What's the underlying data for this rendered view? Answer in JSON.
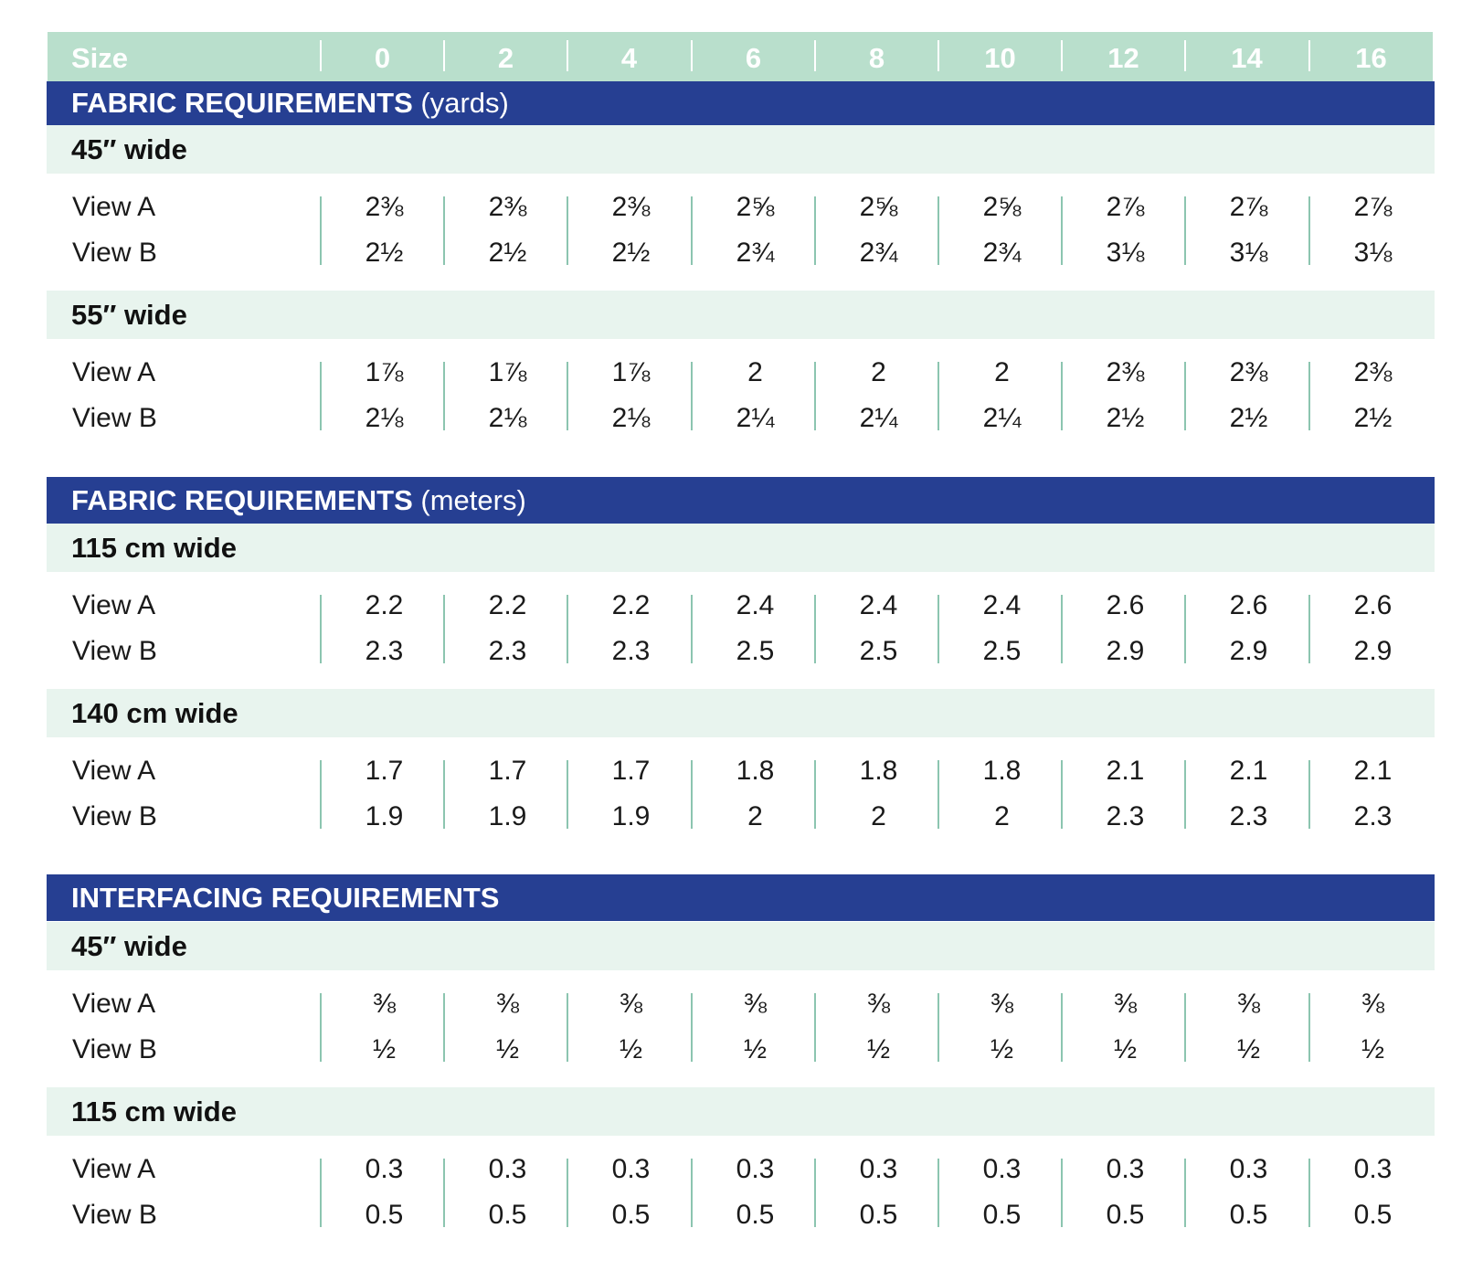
{
  "colors": {
    "header": "#b9dfcc",
    "navy": "#263f92",
    "band": "#e8f4ee",
    "divider": "#8cc5b0"
  },
  "size_header": {
    "label": "Size",
    "sizes": [
      "0",
      "2",
      "4",
      "6",
      "8",
      "10",
      "12",
      "14",
      "16"
    ]
  },
  "sections": [
    {
      "title": "FABRIC REQUIREMENTS",
      "unit": "(yards)",
      "groups": [
        {
          "label": "45″ wide",
          "rows": [
            {
              "label": "View A",
              "values": [
                "2⅜",
                "2⅜",
                "2⅜",
                "2⅝",
                "2⅝",
                "2⅝",
                "2⅞",
                "2⅞",
                "2⅞"
              ]
            },
            {
              "label": "View B",
              "values": [
                "2½",
                "2½",
                "2½",
                "2¾",
                "2¾",
                "2¾",
                "3⅛",
                "3⅛",
                "3⅛"
              ]
            }
          ]
        },
        {
          "label": "55″ wide",
          "rows": [
            {
              "label": "View A",
              "values": [
                "1⅞",
                "1⅞",
                "1⅞",
                "2",
                "2",
                "2",
                "2⅜",
                "2⅜",
                "2⅜"
              ]
            },
            {
              "label": "View B",
              "values": [
                "2⅛",
                "2⅛",
                "2⅛",
                "2¼",
                "2¼",
                "2¼",
                "2½",
                "2½",
                "2½"
              ]
            }
          ]
        }
      ]
    },
    {
      "title": "FABRIC REQUIREMENTS",
      "unit": "(meters)",
      "groups": [
        {
          "label": "115 cm wide",
          "rows": [
            {
              "label": "View A",
              "values": [
                "2.2",
                "2.2",
                "2.2",
                "2.4",
                "2.4",
                "2.4",
                "2.6",
                "2.6",
                "2.6"
              ]
            },
            {
              "label": "View B",
              "values": [
                "2.3",
                "2.3",
                "2.3",
                "2.5",
                "2.5",
                "2.5",
                "2.9",
                "2.9",
                "2.9"
              ]
            }
          ]
        },
        {
          "label": "140 cm wide",
          "rows": [
            {
              "label": "View A",
              "values": [
                "1.7",
                "1.7",
                "1.7",
                "1.8",
                "1.8",
                "1.8",
                "2.1",
                "2.1",
                "2.1"
              ]
            },
            {
              "label": "View B",
              "values": [
                "1.9",
                "1.9",
                "1.9",
                "2",
                "2",
                "2",
                "2.3",
                "2.3",
                "2.3"
              ]
            }
          ]
        }
      ]
    },
    {
      "title": "INTERFACING REQUIREMENTS",
      "unit": "",
      "groups": [
        {
          "label": "45″ wide",
          "rows": [
            {
              "label": "View A",
              "values": [
                "⅜",
                "⅜",
                "⅜",
                "⅜",
                "⅜",
                "⅜",
                "⅜",
                "⅜",
                "⅜"
              ]
            },
            {
              "label": "View B",
              "values": [
                "½",
                "½",
                "½",
                "½",
                "½",
                "½",
                "½",
                "½",
                "½"
              ]
            }
          ]
        },
        {
          "label": "115 cm wide",
          "rows": [
            {
              "label": "View A",
              "values": [
                "0.3",
                "0.3",
                "0.3",
                "0.3",
                "0.3",
                "0.3",
                "0.3",
                "0.3",
                "0.3"
              ]
            },
            {
              "label": "View B",
              "values": [
                "0.5",
                "0.5",
                "0.5",
                "0.5",
                "0.5",
                "0.5",
                "0.5",
                "0.5",
                "0.5"
              ]
            }
          ]
        }
      ]
    }
  ]
}
